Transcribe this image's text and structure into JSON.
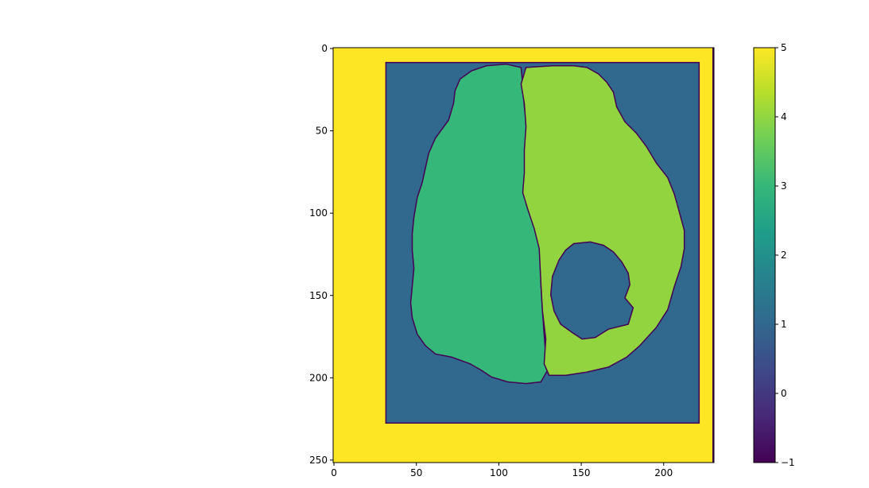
{
  "chart_data": {
    "type": "heatmap",
    "title": "",
    "xlabel": "",
    "ylabel": "",
    "image_shape": {
      "rows": 252,
      "cols": 231
    },
    "xlim": [
      0,
      231
    ],
    "ylim": [
      252,
      0
    ],
    "x_ticks": [
      0,
      50,
      100,
      150,
      200
    ],
    "y_ticks": [
      0,
      50,
      100,
      150,
      200,
      250
    ],
    "colorbar": {
      "range": [
        -1,
        5
      ],
      "ticks": [
        -1,
        0,
        1,
        2,
        3,
        4,
        5
      ],
      "colormap": "viridis",
      "stops": [
        "#440154",
        "#482878",
        "#3e4989",
        "#31688e",
        "#26828e",
        "#1f9e89",
        "#35b779",
        "#6ece58",
        "#b5de2b",
        "#fde725"
      ]
    },
    "regions": [
      {
        "label_value": 5,
        "color": "#fde725",
        "description_key": "outer-frame",
        "bounds": {
          "x": [
            0,
            231
          ],
          "y": [
            0,
            252
          ]
        }
      },
      {
        "label_value": 1,
        "color": "#31688e",
        "description_key": "background-box",
        "bounds": {
          "x": [
            32,
            222
          ],
          "y": [
            9,
            228
          ]
        }
      },
      {
        "label_value": 3,
        "color": "#35b779",
        "description_key": "left-hemisphere",
        "polygon": [
          [
            105,
            10
          ],
          [
            93,
            11
          ],
          [
            84,
            14
          ],
          [
            77,
            19
          ],
          [
            74,
            26
          ],
          [
            73,
            34
          ],
          [
            70,
            44
          ],
          [
            62,
            55
          ],
          [
            58,
            64
          ],
          [
            56,
            73
          ],
          [
            54,
            82
          ],
          [
            51,
            91
          ],
          [
            49,
            103
          ],
          [
            48,
            113
          ],
          [
            48,
            123
          ],
          [
            49,
            134
          ],
          [
            48,
            145
          ],
          [
            47,
            155
          ],
          [
            48,
            164
          ],
          [
            51,
            174
          ],
          [
            56,
            181
          ],
          [
            62,
            186
          ],
          [
            72,
            188
          ],
          [
            83,
            192
          ],
          [
            90,
            196
          ],
          [
            96,
            200
          ],
          [
            106,
            203
          ],
          [
            117,
            204
          ],
          [
            126,
            203
          ],
          [
            130,
            196
          ],
          [
            129,
            188
          ],
          [
            128,
            174
          ],
          [
            127,
            160
          ],
          [
            126,
            143
          ],
          [
            126,
            123
          ],
          [
            124,
            112
          ],
          [
            121,
            101
          ],
          [
            116,
            90
          ],
          [
            117,
            78
          ],
          [
            117,
            66
          ],
          [
            118,
            52
          ],
          [
            116,
            36
          ],
          [
            115,
            22
          ],
          [
            114,
            12
          ]
        ]
      },
      {
        "label_value": 4,
        "color": "#91d43f",
        "description_key": "right-hemisphere",
        "polygon": [
          [
            117,
            12
          ],
          [
            133,
            11
          ],
          [
            146,
            11
          ],
          [
            154,
            12
          ],
          [
            161,
            16
          ],
          [
            166,
            21
          ],
          [
            170,
            27
          ],
          [
            172,
            36
          ],
          [
            177,
            45
          ],
          [
            184,
            52
          ],
          [
            190,
            60
          ],
          [
            196,
            70
          ],
          [
            203,
            79
          ],
          [
            207,
            89
          ],
          [
            210,
            100
          ],
          [
            213,
            111
          ],
          [
            213,
            122
          ],
          [
            211,
            133
          ],
          [
            207,
            145
          ],
          [
            203,
            159
          ],
          [
            196,
            170
          ],
          [
            186,
            181
          ],
          [
            178,
            188
          ],
          [
            167,
            194
          ],
          [
            154,
            197
          ],
          [
            141,
            199
          ],
          [
            131,
            199
          ],
          [
            128,
            192
          ],
          [
            129,
            177
          ],
          [
            127,
            160
          ],
          [
            126,
            143
          ],
          [
            125,
            122
          ],
          [
            122,
            110
          ],
          [
            118,
            98
          ],
          [
            115,
            88
          ],
          [
            116,
            76
          ],
          [
            116,
            62
          ],
          [
            117,
            48
          ],
          [
            116,
            34
          ],
          [
            114,
            22
          ]
        ]
      },
      {
        "label_value": 1,
        "color": "#31688e",
        "description_key": "lesion-hole",
        "polygon": [
          [
            146,
            119
          ],
          [
            156,
            118
          ],
          [
            164,
            120
          ],
          [
            170,
            124
          ],
          [
            175,
            130
          ],
          [
            179,
            137
          ],
          [
            180,
            144
          ],
          [
            177,
            152
          ],
          [
            182,
            158
          ],
          [
            179,
            168
          ],
          [
            167,
            171
          ],
          [
            159,
            176
          ],
          [
            151,
            177
          ],
          [
            145,
            173
          ],
          [
            138,
            168
          ],
          [
            134,
            160
          ],
          [
            132,
            150
          ],
          [
            133,
            139
          ],
          [
            137,
            129
          ],
          [
            141,
            123
          ]
        ]
      }
    ]
  }
}
